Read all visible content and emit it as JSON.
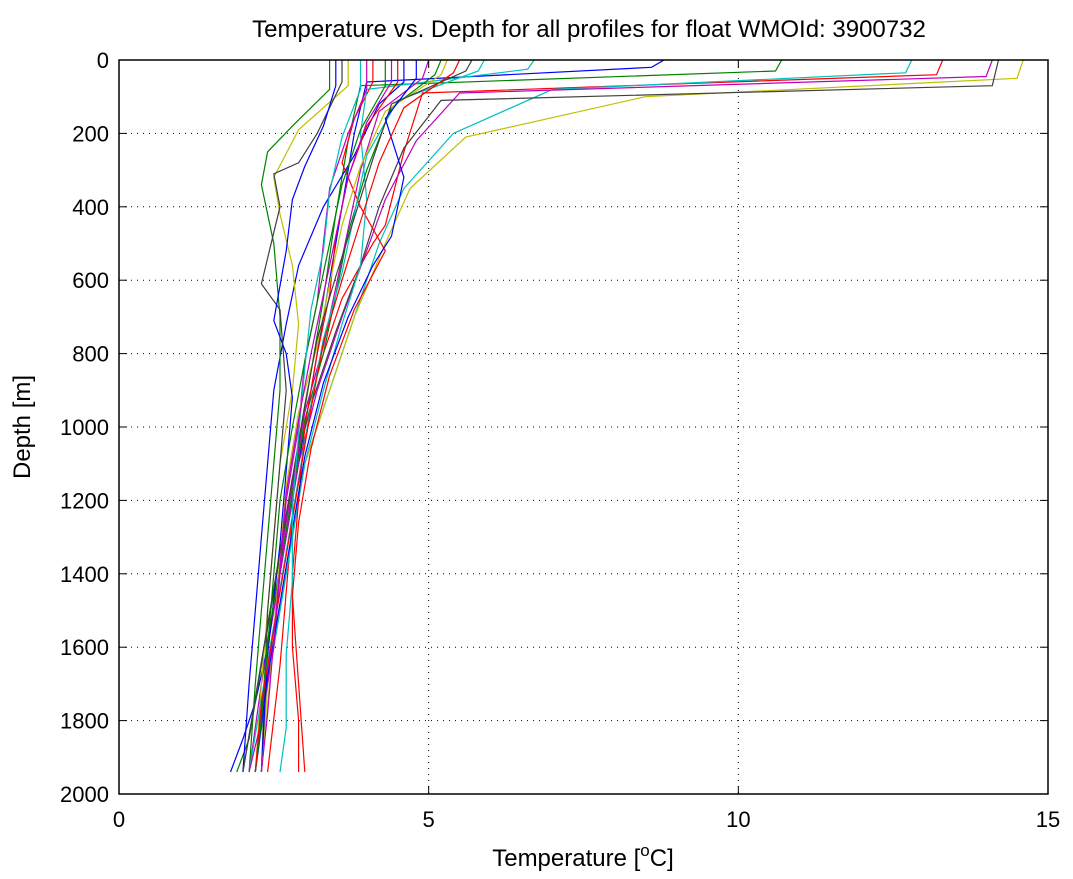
{
  "chart_data": {
    "type": "line",
    "title": "Temperature vs. Depth for all profiles for float WMOId: 3900732",
    "xlabel": "Temperature [",
    "xlabel_sup": "o",
    "xlabel_tail": "C]",
    "ylabel": "Depth [m]",
    "xlim": [
      0,
      15
    ],
    "ylim": [
      0,
      2000
    ],
    "y_reversed": true,
    "grid": true,
    "x_ticks": [
      0,
      5,
      10,
      15
    ],
    "x_tick_labels": [
      "0",
      "5",
      "10",
      "15"
    ],
    "y_ticks": [
      0,
      200,
      400,
      600,
      800,
      1000,
      1200,
      1400,
      1600,
      1800,
      2000
    ],
    "y_tick_labels": [
      "0",
      "200",
      "400",
      "600",
      "800",
      "1000",
      "1200",
      "1400",
      "1600",
      "1800",
      "2000"
    ],
    "series": [
      {
        "color": "#0000ff",
        "x": [
          8.8,
          8.6,
          4.0,
          3.8,
          3.6,
          3.4,
          3.2,
          3.0,
          2.8,
          2.6,
          2.4,
          2.2,
          2.0,
          1.8
        ],
        "y": [
          0,
          20,
          60,
          200,
          400,
          600,
          800,
          1000,
          1200,
          1400,
          1600,
          1750,
          1850,
          1940
        ]
      },
      {
        "color": "#008000",
        "x": [
          10.7,
          10.6,
          3.9,
          3.7,
          3.5,
          3.3,
          3.1,
          2.9,
          2.7,
          2.5,
          2.3,
          2.1,
          1.9
        ],
        "y": [
          0,
          30,
          70,
          220,
          420,
          650,
          850,
          1050,
          1250,
          1450,
          1650,
          1850,
          1940
        ]
      },
      {
        "color": "#ff0000",
        "x": [
          13.3,
          13.2,
          4.9,
          4.6,
          4.3,
          4.1,
          3.6,
          3.2,
          3.0,
          2.8,
          2.7,
          2.6,
          2.4
        ],
        "y": [
          0,
          40,
          90,
          250,
          450,
          500,
          650,
          850,
          1050,
          1250,
          1450,
          1650,
          1940
        ]
      },
      {
        "color": "#00bfbf",
        "x": [
          12.8,
          12.7,
          7.0,
          5.4,
          4.6,
          4.2,
          3.8,
          3.4,
          3.0,
          2.8,
          2.6,
          2.4,
          2.2
        ],
        "y": [
          0,
          35,
          80,
          200,
          350,
          500,
          700,
          900,
          1100,
          1300,
          1500,
          1700,
          1940
        ]
      },
      {
        "color": "#bf00bf",
        "x": [
          14.1,
          14.0,
          5.5,
          4.8,
          4.3,
          4.0,
          3.6,
          3.2,
          2.9,
          2.7,
          2.5,
          2.3,
          2.1
        ],
        "y": [
          0,
          45,
          90,
          220,
          380,
          520,
          700,
          900,
          1100,
          1300,
          1500,
          1700,
          1940
        ]
      },
      {
        "color": "#bfbf00",
        "x": [
          14.6,
          14.5,
          8.5,
          5.6,
          4.7,
          4.3,
          3.8,
          3.4,
          3.0,
          2.8,
          2.6,
          2.4,
          2.3
        ],
        "y": [
          0,
          50,
          100,
          210,
          350,
          500,
          700,
          900,
          1100,
          1300,
          1500,
          1700,
          1940
        ]
      },
      {
        "color": "#404040",
        "x": [
          14.2,
          14.1,
          5.2,
          4.6,
          4.2,
          3.9,
          3.5,
          3.1,
          2.8,
          2.6,
          2.4,
          2.2,
          2.0
        ],
        "y": [
          0,
          70,
          110,
          240,
          400,
          560,
          740,
          940,
          1140,
          1340,
          1540,
          1740,
          1940
        ]
      },
      {
        "color": "#0000ff",
        "x": [
          4.6,
          4.6,
          4.2,
          3.8,
          3.3,
          2.9,
          2.7,
          2.5,
          2.4,
          2.3,
          2.2,
          2.1,
          2.0
        ],
        "y": [
          0,
          60,
          120,
          260,
          400,
          560,
          720,
          900,
          1100,
          1300,
          1500,
          1700,
          1940
        ]
      },
      {
        "color": "#008000",
        "x": [
          3.4,
          3.4,
          2.8,
          2.4,
          2.3,
          2.5,
          2.6,
          2.6,
          2.5,
          2.4,
          2.3,
          2.2,
          2.1
        ],
        "y": [
          0,
          80,
          180,
          250,
          340,
          500,
          700,
          900,
          1100,
          1300,
          1500,
          1700,
          1940
        ]
      },
      {
        "color": "#ff0000",
        "x": [
          4.1,
          4.1,
          3.8,
          3.6,
          3.9,
          4.3,
          3.8,
          3.4,
          3.1,
          2.9,
          2.8,
          2.9,
          3.0
        ],
        "y": [
          0,
          60,
          160,
          280,
          400,
          520,
          680,
          860,
          1060,
          1260,
          1460,
          1700,
          1940
        ]
      },
      {
        "color": "#00bfbf",
        "x": [
          6.7,
          6.6,
          4.0,
          3.9,
          4.0,
          3.9,
          3.6,
          3.3,
          3.0,
          2.8,
          2.6,
          2.4,
          2.2
        ],
        "y": [
          0,
          25,
          80,
          200,
          380,
          560,
          720,
          900,
          1100,
          1300,
          1500,
          1700,
          1940
        ]
      },
      {
        "color": "#bf00bf",
        "x": [
          5.0,
          4.9,
          4.2,
          3.9,
          3.7,
          3.5,
          3.3,
          3.0,
          2.8,
          2.6,
          2.5,
          2.3,
          2.2
        ],
        "y": [
          0,
          50,
          140,
          300,
          460,
          620,
          780,
          960,
          1160,
          1360,
          1560,
          1760,
          1940
        ]
      },
      {
        "color": "#bfbf00",
        "x": [
          3.7,
          3.7,
          2.9,
          2.5,
          2.6,
          2.8,
          2.9,
          2.8,
          2.6,
          2.5,
          2.4,
          2.3,
          2.2
        ],
        "y": [
          0,
          70,
          190,
          320,
          420,
          560,
          720,
          900,
          1100,
          1300,
          1500,
          1700,
          1940
        ]
      },
      {
        "color": "#404040",
        "x": [
          3.6,
          3.6,
          3.2,
          2.9,
          2.5,
          2.6,
          2.3,
          2.6,
          2.7,
          2.6,
          2.5,
          2.4,
          2.3
        ],
        "y": [
          0,
          60,
          200,
          280,
          310,
          400,
          610,
          680,
          900,
          1100,
          1300,
          1500,
          1940
        ]
      },
      {
        "color": "#0000ff",
        "x": [
          3.5,
          3.5,
          3.3,
          3.0,
          2.8,
          2.7,
          2.5,
          2.7,
          2.8,
          2.7,
          2.6,
          2.4,
          2.3
        ],
        "y": [
          0,
          70,
          180,
          290,
          380,
          520,
          710,
          800,
          920,
          1120,
          1320,
          1620,
          1940
        ]
      },
      {
        "color": "#008000",
        "x": [
          5.2,
          5.1,
          4.4,
          4.0,
          3.7,
          3.5,
          3.3,
          3.0,
          2.8,
          2.6,
          2.4,
          2.3,
          2.2
        ],
        "y": [
          0,
          40,
          130,
          300,
          470,
          640,
          800,
          980,
          1180,
          1380,
          1580,
          1780,
          1940
        ]
      },
      {
        "color": "#ff0000",
        "x": [
          4.5,
          4.5,
          4.0,
          3.7,
          3.5,
          3.4,
          3.2,
          3.0,
          2.9,
          2.8,
          2.8,
          2.9,
          2.9
        ],
        "y": [
          0,
          60,
          180,
          320,
          480,
          640,
          800,
          1000,
          1200,
          1400,
          1600,
          1800,
          1940
        ]
      },
      {
        "color": "#00bfbf",
        "x": [
          5.9,
          5.8,
          4.5,
          4.0,
          3.8,
          3.6,
          3.3,
          3.1,
          2.9,
          2.7,
          2.5,
          2.3,
          2.1
        ],
        "y": [
          0,
          30,
          110,
          260,
          420,
          580,
          760,
          940,
          1140,
          1340,
          1540,
          1740,
          1940
        ]
      },
      {
        "color": "#bf00bf",
        "x": [
          4.0,
          4.0,
          3.7,
          3.4,
          3.3,
          3.2,
          3.0,
          2.9,
          2.7,
          2.6,
          2.5,
          2.3,
          2.1
        ],
        "y": [
          0,
          80,
          200,
          350,
          500,
          660,
          820,
          1000,
          1200,
          1400,
          1600,
          1800,
          1940
        ]
      },
      {
        "color": "#bfbf00",
        "x": [
          5.3,
          5.2,
          4.3,
          3.9,
          3.6,
          3.4,
          3.2,
          2.9,
          2.7,
          2.6,
          2.5,
          2.4,
          2.3
        ],
        "y": [
          0,
          40,
          140,
          290,
          450,
          610,
          780,
          960,
          1160,
          1360,
          1560,
          1760,
          1940
        ]
      },
      {
        "color": "#404040",
        "x": [
          5.7,
          5.6,
          4.4,
          4.1,
          3.8,
          3.5,
          3.2,
          3.0,
          2.8,
          2.6,
          2.4,
          2.2,
          2.0
        ],
        "y": [
          0,
          30,
          120,
          270,
          430,
          590,
          760,
          940,
          1140,
          1340,
          1540,
          1740,
          1940
        ]
      },
      {
        "color": "#0000ff",
        "x": [
          4.8,
          4.8,
          4.3,
          4.6,
          4.4,
          4.1,
          3.7,
          3.3,
          3.0,
          2.8,
          2.6,
          2.4,
          2.2
        ],
        "y": [
          0,
          50,
          160,
          320,
          480,
          560,
          700,
          880,
          1080,
          1280,
          1480,
          1680,
          1940
        ]
      },
      {
        "color": "#008000",
        "x": [
          4.3,
          4.3,
          3.9,
          3.6,
          3.4,
          3.2,
          3.0,
          2.8,
          2.6,
          2.5,
          2.4,
          2.3,
          2.2
        ],
        "y": [
          0,
          70,
          190,
          340,
          500,
          660,
          820,
          1000,
          1200,
          1400,
          1600,
          1800,
          1940
        ]
      },
      {
        "color": "#ff0000",
        "x": [
          5.5,
          5.4,
          4.6,
          4.2,
          3.9,
          3.6,
          3.3,
          3.1,
          2.9,
          2.7,
          2.5,
          2.3,
          2.2
        ],
        "y": [
          0,
          35,
          130,
          280,
          440,
          600,
          770,
          950,
          1150,
          1350,
          1550,
          1750,
          1940
        ]
      },
      {
        "color": "#00bfbf",
        "x": [
          3.9,
          3.9,
          3.6,
          3.4,
          3.3,
          3.1,
          3.0,
          2.9,
          2.8,
          2.8,
          2.7,
          2.7,
          2.6
        ],
        "y": [
          0,
          80,
          210,
          360,
          520,
          680,
          840,
          1020,
          1220,
          1420,
          1620,
          1820,
          1940
        ]
      },
      {
        "color": "#bf00bf",
        "x": [
          4.4,
          4.4,
          4.0,
          3.7,
          3.5,
          3.3,
          3.1,
          2.9,
          2.7,
          2.6,
          2.5,
          2.4,
          2.3
        ],
        "y": [
          0,
          60,
          170,
          320,
          480,
          640,
          800,
          980,
          1180,
          1380,
          1580,
          1780,
          1940
        ]
      }
    ]
  }
}
